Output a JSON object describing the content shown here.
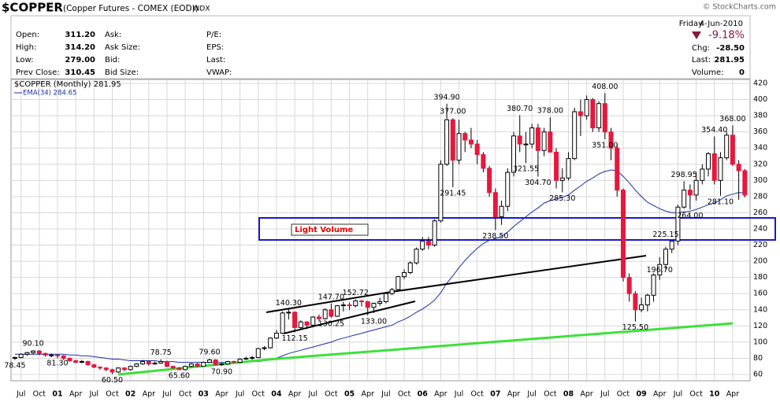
{
  "header": {
    "symbol": "$COPPER",
    "description": "(Copper Futures - COMEX (EOD))",
    "exchange": "INDX",
    "credit": "© StockCharts.com",
    "quote": [
      [
        "Open:",
        "311.20"
      ],
      [
        "High:",
        "314.20"
      ],
      [
        "Low:",
        "279.00"
      ],
      [
        "Prev Close:",
        "310.45"
      ]
    ],
    "col2": [
      "Ask:",
      "Ask Size:",
      "Bid:",
      "Bid Size:"
    ],
    "col3": [
      "P/E:",
      "EPS:",
      "Last:",
      "VWAP:"
    ],
    "day": "Friday",
    "date": "4-Jun-2010",
    "change_pct": "-9.18%",
    "chg_label": "Chg:",
    "chg": "-28.50",
    "last_label": "Last:",
    "last": "281.95",
    "volume_label": "Volume:",
    "volume": "0"
  },
  "chart_data": {
    "type": "candlestick",
    "categories": [
      null,
      "Jul",
      null,
      null,
      "Oct",
      null,
      null,
      "01",
      null,
      null,
      "Apr",
      null,
      null,
      "Jul",
      null,
      null,
      "Oct",
      null,
      null,
      "02",
      null,
      null,
      "Apr",
      null,
      null,
      "Jul",
      null,
      null,
      "Oct",
      null,
      null,
      "03",
      null,
      null,
      "Apr",
      null,
      null,
      "Jul",
      null,
      null,
      "Oct",
      null,
      null,
      "04",
      null,
      null,
      "Apr",
      null,
      null,
      "Jul",
      null,
      null,
      "Oct",
      null,
      null,
      "05",
      null,
      null,
      "Apr",
      null,
      null,
      "Jul",
      null,
      null,
      "Oct",
      null,
      null,
      "06",
      null,
      null,
      "Apr",
      null,
      null,
      "Jul",
      null,
      null,
      "Oct",
      null,
      null,
      "07",
      null,
      null,
      "Apr",
      null,
      null,
      "Jul",
      null,
      null,
      "Oct",
      null,
      null,
      "08",
      null,
      null,
      "Apr",
      null,
      null,
      "Jul",
      null,
      null,
      "Oct",
      null,
      null,
      "09",
      null,
      null,
      "Apr",
      null,
      null,
      "Jul",
      null,
      null,
      "Oct",
      null,
      null,
      "10",
      null,
      null,
      "Apr",
      null,
      null
    ],
    "series": [
      {
        "name": "$COPPER (Monthly) 281.95",
        "up_color": "#ffffff",
        "down_color": "#e8173c",
        "ohlc": [
          [
            80,
            82,
            78,
            81
          ],
          [
            81,
            86,
            80,
            85
          ],
          [
            85,
            88,
            83,
            87
          ],
          [
            87,
            90.1,
            85,
            89
          ],
          [
            89,
            90,
            84,
            86
          ],
          [
            86,
            87,
            82,
            84
          ],
          [
            84,
            86,
            81.3,
            84
          ],
          [
            84,
            85,
            80,
            83
          ],
          [
            83,
            84,
            78,
            80
          ],
          [
            80,
            81,
            76,
            77
          ],
          [
            77,
            78,
            74,
            75
          ],
          [
            75,
            78,
            74,
            76
          ],
          [
            76,
            77,
            71,
            72
          ],
          [
            72,
            73,
            68,
            69
          ],
          [
            69,
            70,
            66,
            68
          ],
          [
            68,
            69,
            64,
            66
          ],
          [
            66,
            67,
            60.5,
            63
          ],
          [
            63,
            69,
            62,
            68
          ],
          [
            68,
            69,
            64,
            66
          ],
          [
            66,
            71,
            65,
            70
          ],
          [
            70,
            74,
            69,
            73
          ],
          [
            73,
            78,
            72,
            76
          ],
          [
            76,
            77,
            71,
            73
          ],
          [
            73,
            76,
            72,
            74
          ],
          [
            74,
            78.75,
            73,
            76
          ],
          [
            76,
            77,
            69,
            70
          ],
          [
            70,
            71,
            67,
            68
          ],
          [
            68,
            69,
            65.6,
            66
          ],
          [
            66,
            71,
            65,
            70
          ],
          [
            70,
            74,
            69,
            73
          ],
          [
            73,
            74,
            69,
            70
          ],
          [
            70,
            76,
            70,
            75
          ],
          [
            75,
            79.6,
            74,
            78
          ],
          [
            78,
            79,
            71,
            72
          ],
          [
            72,
            74,
            70.9,
            73
          ],
          [
            73,
            77,
            72,
            76
          ],
          [
            76,
            77,
            74,
            75
          ],
          [
            75,
            80,
            74,
            79
          ],
          [
            79,
            82,
            78,
            80
          ],
          [
            80,
            83,
            78,
            81
          ],
          [
            81,
            93,
            80,
            92
          ],
          [
            92,
            95,
            90,
            93
          ],
          [
            93,
            106,
            92,
            105
          ],
          [
            105,
            115,
            104,
            111
          ],
          [
            111,
            138,
            110,
            136
          ],
          [
            136,
            140.3,
            128,
            137
          ],
          [
            137,
            138,
            112.15,
            118
          ],
          [
            118,
            127,
            116,
            125
          ],
          [
            125,
            126,
            116,
            121
          ],
          [
            121,
            132,
            120,
            131
          ],
          [
            131,
            134,
            126,
            129
          ],
          [
            129,
            142,
            128,
            140
          ],
          [
            140,
            147.7,
            130.25,
            132
          ],
          [
            132,
            146,
            131,
            145
          ],
          [
            145,
            150,
            138,
            146
          ],
          [
            146,
            149,
            140,
            145
          ],
          [
            145,
            152.72,
            143,
            151
          ],
          [
            151,
            152,
            144,
            150
          ],
          [
            150,
            151,
            133,
            143
          ],
          [
            143,
            149,
            136,
            148
          ],
          [
            148,
            155,
            145,
            150
          ],
          [
            150,
            161,
            148,
            160
          ],
          [
            160,
            167,
            158,
            165
          ],
          [
            165,
            182,
            163,
            181
          ],
          [
            181,
            190,
            178,
            186
          ],
          [
            186,
            200,
            184,
            198
          ],
          [
            198,
            217,
            196,
            215
          ],
          [
            215,
            230,
            213,
            225
          ],
          [
            225,
            230,
            215,
            220
          ],
          [
            220,
            252,
            218,
            250
          ],
          [
            250,
            325,
            248,
            320
          ],
          [
            320,
            394.9,
            318,
            375
          ],
          [
            375,
            377,
            291.45,
            325
          ],
          [
            325,
            375,
            320,
            358
          ],
          [
            358,
            360,
            335,
            350
          ],
          [
            350,
            365,
            340,
            345
          ],
          [
            345,
            350,
            320,
            332
          ],
          [
            332,
            335,
            310,
            315
          ],
          [
            315,
            318,
            280,
            285
          ],
          [
            285,
            290,
            238.5,
            255
          ],
          [
            255,
            275,
            245,
            268
          ],
          [
            268,
            315,
            262,
            310
          ],
          [
            310,
            360,
            305,
            355
          ],
          [
            355,
            380.7,
            335,
            345
          ],
          [
            345,
            360,
            321.55,
            345
          ],
          [
            345,
            370,
            340,
            365
          ],
          [
            365,
            370,
            304.7,
            337
          ],
          [
            337,
            365,
            330,
            360
          ],
          [
            360,
            378,
            335,
            335
          ],
          [
            335,
            340,
            290,
            300
          ],
          [
            300,
            315,
            285.3,
            303
          ],
          [
            303,
            335,
            300,
            327
          ],
          [
            327,
            390,
            325,
            385
          ],
          [
            385,
            400,
            355,
            380
          ],
          [
            380,
            405,
            375,
            400
          ],
          [
            400,
            402,
            360,
            365
          ],
          [
            365,
            398,
            360,
            395
          ],
          [
            395,
            408,
            351,
            360
          ],
          [
            360,
            365,
            325,
            340
          ],
          [
            340,
            345,
            280,
            288
          ],
          [
            288,
            290,
            175,
            180
          ],
          [
            180,
            185,
            150,
            160
          ],
          [
            160,
            163,
            125.5,
            140
          ],
          [
            140,
            155,
            137,
            146
          ],
          [
            146,
            160,
            138,
            158
          ],
          [
            158,
            185,
            150,
            183
          ],
          [
            183,
            205,
            177,
            196
          ],
          [
            196,
            218,
            190,
            215
          ],
          [
            215,
            225.15,
            210,
            225
          ],
          [
            225,
            270,
            220,
            267
          ],
          [
            267,
            298.95,
            265,
            288
          ],
          [
            288,
            295,
            264,
            282
          ],
          [
            282,
            310,
            275,
            300
          ],
          [
            300,
            320,
            295,
            314
          ],
          [
            314,
            335,
            305,
            333
          ],
          [
            333,
            354.4,
            295,
            300
          ],
          [
            300,
            335,
            281.1,
            328
          ],
          [
            328,
            360,
            325,
            356
          ],
          [
            356,
            368,
            318,
            320
          ],
          [
            320,
            325,
            276,
            312
          ],
          [
            312,
            314.2,
            279,
            281.95
          ]
        ]
      },
      {
        "name": "EMA(34) 284.65",
        "color": "#1a2ea8",
        "values": [
          85,
          85,
          85,
          85,
          85,
          85,
          85,
          85,
          85,
          84,
          84,
          83,
          83,
          82,
          81,
          80,
          79,
          79,
          78,
          77,
          77,
          77,
          77,
          77,
          76,
          76,
          76,
          75,
          75,
          75,
          75,
          75,
          75,
          75,
          75,
          75,
          75,
          75,
          75,
          76,
          76,
          77,
          78,
          80,
          83,
          86,
          88,
          90,
          92,
          94,
          96,
          98,
          100,
          103,
          105,
          107,
          109,
          111,
          113,
          115,
          117,
          119,
          121,
          125,
          128,
          132,
          137,
          141,
          146,
          152,
          161,
          173,
          182,
          192,
          201,
          209,
          216,
          222,
          226,
          228,
          231,
          236,
          243,
          249,
          255,
          261,
          266,
          272,
          275,
          277,
          279,
          282,
          288,
          293,
          299,
          303,
          308,
          311,
          313,
          312,
          305,
          297,
          288,
          280,
          273,
          269,
          265,
          262,
          260,
          260,
          261,
          262,
          264,
          267,
          270,
          272,
          276,
          281,
          283,
          285,
          284.65
        ]
      }
    ],
    "ylim": [
      60,
      420
    ],
    "yticks": [
      60,
      80,
      100,
      120,
      140,
      160,
      180,
      200,
      220,
      240,
      260,
      280,
      300,
      320,
      340,
      360,
      380,
      400,
      420
    ],
    "grid": true,
    "annotations": [
      {
        "value": 90.1,
        "label": "90.10"
      },
      {
        "value": 81.3,
        "label": "81.30"
      },
      {
        "value": 78.45,
        "label": "78.45"
      },
      {
        "value": 60.5,
        "label": "60.50"
      },
      {
        "value": 78.75,
        "label": "78.75"
      },
      {
        "value": 65.6,
        "label": "65.60"
      },
      {
        "value": 79.6,
        "label": "79.60"
      },
      {
        "value": 70.9,
        "label": "70.90"
      },
      {
        "value": 140.3,
        "label": "140.30"
      },
      {
        "value": 112.15,
        "label": "112.15"
      },
      {
        "value": 147.7,
        "label": "147.70"
      },
      {
        "value": 130.25,
        "label": "130.25"
      },
      {
        "value": 152.72,
        "label": "152.72"
      },
      {
        "value": 133,
        "label": "133.00"
      },
      {
        "value": 394.9,
        "label": "394.90"
      },
      {
        "value": 377,
        "label": "377.00"
      },
      {
        "value": 291.45,
        "label": "291.45"
      },
      {
        "value": 238.5,
        "label": "238.50"
      },
      {
        "value": 380.7,
        "label": "380.70"
      },
      {
        "value": 321.55,
        "label": "321.55"
      },
      {
        "value": 304.7,
        "label": "304.70"
      },
      {
        "value": 378,
        "label": "378.00"
      },
      {
        "value": 285.3,
        "label": "285.30"
      },
      {
        "value": 408,
        "label": "408.00"
      },
      {
        "value": 351,
        "label": "351.00"
      },
      {
        "value": 125.5,
        "label": "125.50"
      },
      {
        "value": 196.7,
        "label": "196.70"
      },
      {
        "value": 225.15,
        "label": "225.15"
      },
      {
        "value": 298.95,
        "label": "298.95"
      },
      {
        "value": 264,
        "label": "264.00"
      },
      {
        "value": 354.4,
        "label": "354.40"
      },
      {
        "value": 281.1,
        "label": "281.10"
      },
      {
        "value": 368,
        "label": "368.00"
      }
    ],
    "box_label": "Light Volume"
  }
}
